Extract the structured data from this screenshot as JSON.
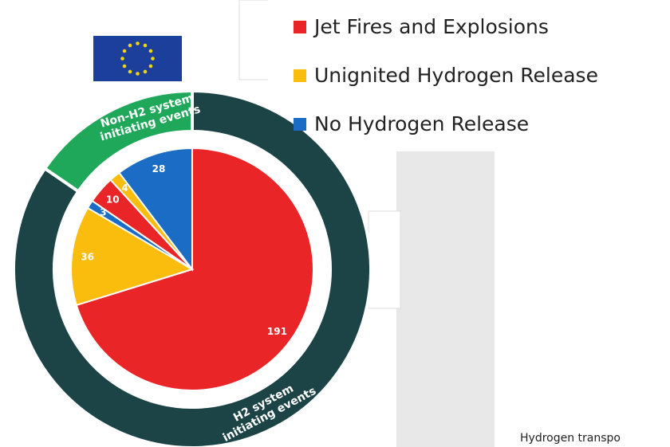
{
  "chart_data": {
    "type": "pie",
    "values": [
      191,
      36,
      3,
      10,
      4,
      28
    ],
    "slice_colors": [
      "#ea2528",
      "#fbbd0d",
      "#1a6cc4",
      "#ea2528",
      "#fbbd0d",
      "#1a6cc4"
    ],
    "legend": [
      {
        "name": "Jet Fires and Explosions",
        "color": "#ea2528"
      },
      {
        "name": "Unignited Hydrogen Release",
        "color": "#fbbd0d"
      },
      {
        "name": "No Hydrogen Release",
        "color": "#1a6cc4"
      }
    ],
    "ring": [
      {
        "label_lines": [
          "H2 system",
          "initiating events"
        ],
        "value": 230,
        "color": "#1c4446"
      },
      {
        "label_lines": [
          "Non-H2 system",
          "initiating events"
        ],
        "value": 42,
        "color": "#1fa85a"
      }
    ]
  },
  "footer_text": "Hydrogen transpo"
}
